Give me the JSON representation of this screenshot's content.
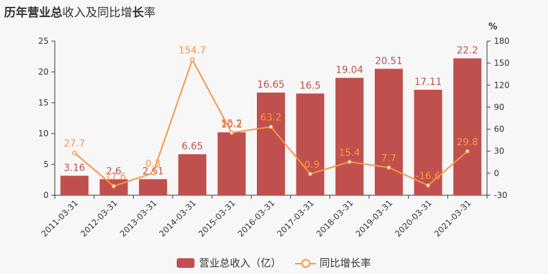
{
  "title": {
    "part1": "历年",
    "part2": "营业总",
    "part3": "收入及同比增",
    "part4": "长",
    "part5": "率"
  },
  "chart_data": {
    "type": "bar",
    "categories": [
      "2011-03-31",
      "2012-03-31",
      "2013-03-31",
      "2014-03-31",
      "2015-03-31",
      "2016-03-31",
      "2017-03-31",
      "2018-03-31",
      "2019-03-31",
      "2020-03-31",
      "2021-03-31"
    ],
    "series": [
      {
        "name": "营业总收入（亿）",
        "type": "bar",
        "axis": "left",
        "color": "#c0504d",
        "values": [
          3.16,
          2.6,
          2.61,
          6.65,
          10.2,
          16.65,
          16.5,
          19.04,
          20.51,
          17.11,
          22.2
        ],
        "labels": [
          "3.16",
          "2.6",
          "2.61",
          "6.65",
          "10.2",
          "16.65",
          "16.5",
          "19.04",
          "20.51",
          "17.11",
          "22.2"
        ]
      },
      {
        "name": "同比增长率",
        "type": "line",
        "axis": "right",
        "color": "#f79646",
        "values": [
          27.7,
          -17.6,
          0.3,
          154.7,
          55.2,
          63.2,
          -0.9,
          15.4,
          7.7,
          -16.6,
          29.8
        ],
        "labels": [
          "27.7",
          "-17.6",
          "0.3",
          "154.7",
          "55.2",
          "63.2",
          "-0.9",
          "15.4",
          "7.7",
          "-16.6",
          "29.8"
        ]
      }
    ],
    "y_left": {
      "min": 0,
      "max": 25,
      "ticks": [
        0,
        5,
        10,
        15,
        20,
        25
      ]
    },
    "y_right": {
      "min": -30,
      "max": 180,
      "ticks": [
        -30,
        0,
        30,
        60,
        90,
        120,
        150,
        180
      ],
      "unit": "%"
    },
    "legend_position": "bottom-center",
    "grid": false
  },
  "legend": {
    "bar_label": "营业总收入（亿）",
    "line_label": "同比增长率"
  }
}
